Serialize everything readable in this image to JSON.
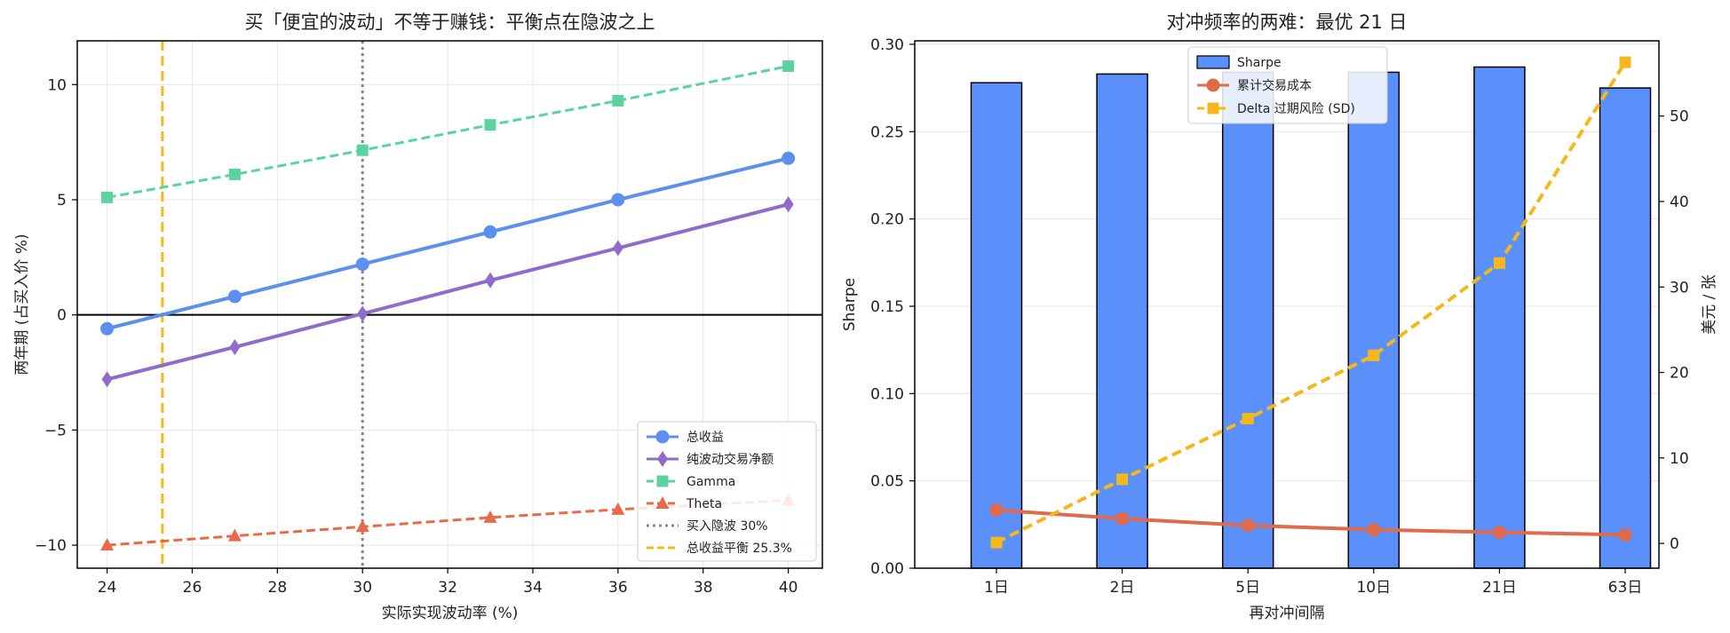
{
  "chart_data": [
    {
      "type": "line",
      "title": "买「便宜的波动」不等于赚钱：平衡点在隐波之上",
      "xlabel": "实际实现波动率 (%)",
      "ylabel": "两年期 (占买入价 %)",
      "xlim": [
        23.3,
        40.8
      ],
      "ylim": [
        -11.0,
        11.9
      ],
      "x_ticks": [
        24,
        26,
        28,
        30,
        32,
        34,
        36,
        38,
        40
      ],
      "y_ticks": [
        -10,
        -5,
        0,
        5,
        10
      ],
      "y_tick_labels": [
        "−10",
        "−5",
        "0",
        "5",
        "10"
      ],
      "grid": true,
      "legend_position": "lower-right",
      "x": [
        24,
        27,
        30,
        33,
        36,
        40
      ],
      "series": [
        {
          "name": "总收益",
          "values": [
            -0.6,
            0.8,
            2.2,
            3.6,
            5.0,
            6.8
          ],
          "color": "#5b8ff0",
          "marker": "circle",
          "dash": "solid"
        },
        {
          "name": "纯波动交易净额",
          "values": [
            -2.8,
            -1.4,
            0.05,
            1.5,
            2.9,
            4.8
          ],
          "color": "#8f6cc8",
          "marker": "diamond",
          "dash": "solid"
        },
        {
          "name": "Gamma",
          "values": [
            5.1,
            6.1,
            7.15,
            8.25,
            9.3,
            10.8
          ],
          "color": "#5bd3a0",
          "marker": "square",
          "dash": "dashed"
        },
        {
          "name": "Theta",
          "values": [
            -10.0,
            -9.6,
            -9.2,
            -8.8,
            -8.45,
            -8.05
          ],
          "color": "#e86a4a",
          "marker": "triangle",
          "dash": "dashed"
        }
      ],
      "reference_lines": [
        {
          "name": "买入隐波 30%",
          "orientation": "vertical",
          "x": 30,
          "color": "#888888",
          "style": "dotted"
        },
        {
          "name": "总收益平衡 25.3%",
          "orientation": "vertical",
          "x": 25.3,
          "color": "#f5b81c",
          "style": "dashed"
        },
        {
          "orientation": "horizontal",
          "y": 0,
          "color": "#000000",
          "style": "solid"
        }
      ]
    },
    {
      "type": "bar",
      "title": "对冲频率的两难：最优 21 日",
      "xlabel": "再对冲间隔",
      "ylabel": "Sharpe",
      "ylabel_right": "美元 / 张",
      "categories": [
        "1日",
        "2日",
        "5日",
        "10日",
        "21日",
        "63日"
      ],
      "ylim": [
        0,
        0.302
      ],
      "ylim_right": [
        -2.9,
        58.8
      ],
      "y_ticks": [
        0.0,
        0.05,
        0.1,
        0.15,
        0.2,
        0.25,
        0.3
      ],
      "y_tick_labels": [
        "0.00",
        "0.05",
        "0.10",
        "0.15",
        "0.20",
        "0.25",
        "0.30"
      ],
      "y_ticks_right": [
        0,
        10,
        20,
        30,
        40,
        50
      ],
      "grid": true,
      "legend_position": "top-center",
      "series": [
        {
          "name": "Sharpe",
          "kind": "bar",
          "axis": "left",
          "values": [
            0.278,
            0.283,
            0.284,
            0.284,
            0.287,
            0.275
          ],
          "color": "#5b8ff9"
        },
        {
          "name": "累计交易成本",
          "kind": "line",
          "axis": "right",
          "values": [
            3.9,
            2.9,
            2.1,
            1.6,
            1.3,
            1.0
          ],
          "color": "#e06a4c",
          "marker": "circle",
          "dash": "solid"
        },
        {
          "name": "Delta 过期风险 (SD)",
          "kind": "line",
          "axis": "right",
          "values": [
            0.1,
            7.5,
            14.6,
            22.0,
            32.8,
            56.3
          ],
          "color": "#f5b81c",
          "marker": "square",
          "dash": "dashed"
        }
      ],
      "ylabel_color": "#5b8ff9",
      "ylabel_right_color": "#e06a4c"
    }
  ]
}
